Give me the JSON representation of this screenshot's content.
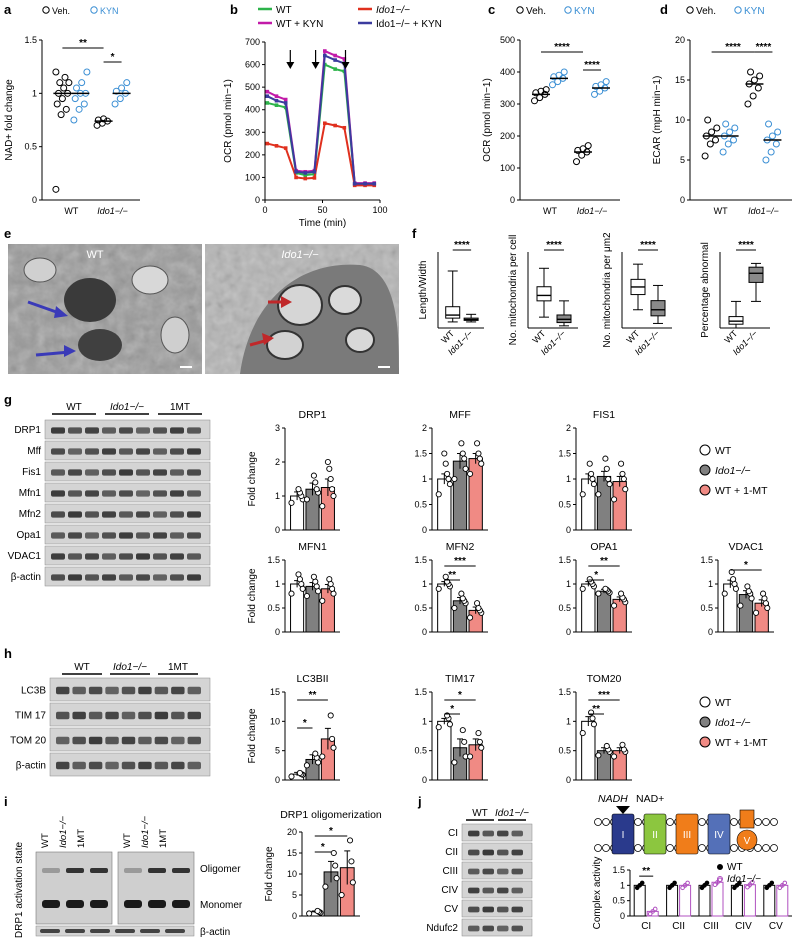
{
  "panels": {
    "a": {
      "letter": "a"
    },
    "b": {
      "letter": "b"
    },
    "c": {
      "letter": "c"
    },
    "d": {
      "letter": "d"
    },
    "e": {
      "letter": "e",
      "left_label": "WT",
      "right_label": "Ido1−/−"
    },
    "f": {
      "letter": "f"
    },
    "g": {
      "letter": "g"
    },
    "h": {
      "letter": "h"
    },
    "i": {
      "letter": "i"
    },
    "j": {
      "letter": "j"
    }
  },
  "legend_veh_kyn": {
    "veh": "Veh.",
    "kyn": "KYN",
    "veh_color": "#000000",
    "kyn_color": "#3b8fd4"
  },
  "legend_b": [
    {
      "name": "WT",
      "color": "#2db34a"
    },
    {
      "name": "WT + KYN",
      "color": "#c21aa8"
    },
    {
      "name": "Ido1−/−",
      "color": "#e0301e"
    },
    {
      "name": "Ido1−/− + KYN",
      "color": "#3b3b9e"
    }
  ],
  "legend_groups": [
    {
      "name": "WT",
      "color": "#ffffff"
    },
    {
      "name": "Ido1−/−",
      "color": "#808080"
    },
    {
      "name": "WT + 1-MT",
      "color": "#f08a84"
    }
  ],
  "legend_j": [
    {
      "name": "WT",
      "color": "#000000"
    },
    {
      "name": "Ido1−/−",
      "color": "#b050c0"
    }
  ],
  "blots": {
    "g": {
      "groups": [
        "WT",
        "Ido1−/−",
        "1MT"
      ],
      "rows": [
        "DRP1",
        "Mff",
        "Fis1",
        "Mfn1",
        "Mfn2",
        "Opa1",
        "VDAC1",
        "β-actin"
      ]
    },
    "h": {
      "groups": [
        "WT",
        "Ido1−/−",
        "1MT"
      ],
      "rows": [
        "LC3B",
        "TIM 17",
        "TOM 20",
        "β-actin"
      ]
    },
    "i": {
      "lanes": [
        "WT",
        "Ido1−/−",
        "1MT",
        "WT",
        "Ido1−/−",
        "1MT"
      ],
      "ylabel": "DRP1 activation state",
      "oligomer": "Oligomer",
      "monomer": "Monomer",
      "actin": "β-actin"
    },
    "j": {
      "groups": [
        "WT",
        "Ido1−/−"
      ],
      "rows": [
        "CI",
        "CII",
        "CIII",
        "CIV",
        "CV",
        "Ndufc2"
      ]
    }
  },
  "schematic_j": {
    "nadh": "NADH",
    "nad": "NAD+",
    "complexes": [
      {
        "label": "I",
        "color": "#2a3a8c"
      },
      {
        "label": "II",
        "color": "#8cc63f"
      },
      {
        "label": "III",
        "color": "#f07d1a"
      },
      {
        "label": "IV",
        "color": "#5470b8"
      },
      {
        "label": "V",
        "color": "#f07d1a"
      }
    ]
  },
  "chart_data": [
    {
      "id": "a",
      "type": "scatter",
      "ylabel": "NAD+ fold change",
      "ylim": [
        0,
        1.5
      ],
      "yticks": [
        0,
        0.5,
        1.0,
        1.5
      ],
      "categories": [
        "WT",
        "Ido1−/−"
      ],
      "series": [
        {
          "name": "Veh.",
          "values": [
            [
              0.1,
              0.8,
              0.85,
              0.9,
              0.95,
              1.0,
              1.0,
              1.05,
              1.1,
              1.1,
              1.15,
              1.2
            ],
            [
              0.7,
              0.72,
              0.74,
              0.75,
              0.76
            ]
          ]
        },
        {
          "name": "KYN",
          "values": [
            [
              0.75,
              0.85,
              0.9,
              0.95,
              1.0,
              1.0,
              1.05,
              1.1,
              1.2
            ],
            [
              0.9,
              0.95,
              1.0,
              1.02,
              1.05,
              1.1
            ]
          ]
        }
      ],
      "means": [
        [
          1.0,
          1.0
        ],
        [
          0.74,
          1.0
        ]
      ],
      "sig": [
        {
          "text": "**"
        },
        {
          "text": "*"
        }
      ]
    },
    {
      "id": "b",
      "type": "line",
      "ylabel": "OCR (pmol min−1)",
      "xlabel": "Time (min)",
      "xlim": [
        0,
        100
      ],
      "ylim": [
        0,
        700
      ],
      "xticks": [
        0,
        50,
        100
      ],
      "yticks": [
        0,
        100,
        200,
        300,
        400,
        500,
        600,
        700
      ],
      "x": [
        2,
        10,
        18,
        27,
        35,
        43,
        52,
        61,
        69,
        78,
        87,
        95
      ],
      "arrows_x": [
        22,
        44,
        70
      ],
      "series": [
        {
          "name": "WT",
          "values": [
            430,
            420,
            410,
            120,
            110,
            115,
            600,
            580,
            570,
            70,
            70,
            70
          ]
        },
        {
          "name": "WT + KYN",
          "values": [
            480,
            460,
            445,
            130,
            125,
            130,
            660,
            640,
            625,
            75,
            75,
            75
          ]
        },
        {
          "name": "Ido1−/−",
          "values": [
            250,
            240,
            230,
            100,
            95,
            98,
            340,
            330,
            320,
            65,
            65,
            65
          ]
        },
        {
          "name": "Ido1−/− + KYN",
          "values": [
            460,
            440,
            430,
            125,
            120,
            125,
            640,
            620,
            605,
            72,
            72,
            72
          ]
        }
      ]
    },
    {
      "id": "c",
      "type": "scatter",
      "ylabel": "OCR (pmol min−1)",
      "ylim": [
        0,
        500
      ],
      "yticks": [
        0,
        100,
        200,
        300,
        400,
        500
      ],
      "categories": [
        "WT",
        "Ido1−/−"
      ],
      "series": [
        {
          "name": "Veh.",
          "values": [
            [
              310,
              320,
              330,
              335,
              340,
              345
            ],
            [
              120,
              140,
              150,
              155,
              160,
              170
            ]
          ]
        },
        {
          "name": "KYN",
          "values": [
            [
              360,
              370,
              380,
              385,
              390,
              400
            ],
            [
              330,
              340,
              350,
              355,
              360,
              370
            ]
          ]
        }
      ],
      "means": [
        [
          330,
          380
        ],
        [
          150,
          350
        ]
      ],
      "sig": [
        {
          "text": "****"
        },
        {
          "text": "****"
        }
      ]
    },
    {
      "id": "d",
      "type": "scatter",
      "ylabel": "ECAR (mpH min−1)",
      "ylim": [
        0,
        20
      ],
      "yticks": [
        0,
        5,
        10,
        15,
        20
      ],
      "categories": [
        "WT",
        "Ido1−/−"
      ],
      "series": [
        {
          "name": "Veh.",
          "values": [
            [
              5.5,
              7,
              7.5,
              8,
              8.5,
              9,
              10
            ],
            [
              12,
              13,
              14,
              14.5,
              15,
              15.5,
              16
            ]
          ]
        },
        {
          "name": "KYN",
          "values": [
            [
              6,
              7,
              7.5,
              8,
              8.5,
              9,
              9.5
            ],
            [
              5,
              6,
              7,
              7.5,
              8,
              8.5,
              9.5
            ]
          ]
        }
      ],
      "means": [
        [
          8,
          8
        ],
        [
          14.5,
          7.5
        ]
      ],
      "sig": [
        {
          "text": "****"
        },
        {
          "text": "****"
        }
      ]
    },
    {
      "id": "f1",
      "type": "box",
      "ylabel": "Length/Width",
      "categories": [
        "WT",
        "Ido1−/−"
      ],
      "ylim": [
        0,
        10
      ],
      "boxes": [
        {
          "min": 0.8,
          "q1": 1.3,
          "med": 1.7,
          "q3": 2.8,
          "max": 7.5
        },
        {
          "min": 0.8,
          "q1": 1.0,
          "med": 1.1,
          "q3": 1.3,
          "max": 1.8
        }
      ],
      "sig": "****"
    },
    {
      "id": "f2",
      "type": "box",
      "ylabel": "No. mitochondria per cell",
      "categories": [
        "WT",
        "Ido1−/−"
      ],
      "ylim": [
        0,
        70
      ],
      "boxes": [
        {
          "min": 10,
          "q1": 25,
          "med": 30,
          "q3": 38,
          "max": 55
        },
        {
          "min": 2,
          "q1": 5,
          "med": 8,
          "q3": 12,
          "max": 25
        }
      ],
      "sig": "****"
    },
    {
      "id": "f3",
      "type": "box",
      "ylabel": "No. mitochondria per μm2",
      "categories": [
        "WT",
        "Ido1−/−"
      ],
      "ylim": [
        0,
        0.5
      ],
      "boxes": [
        {
          "min": 0.12,
          "q1": 0.22,
          "med": 0.27,
          "q3": 0.32,
          "max": 0.42
        },
        {
          "min": 0.03,
          "q1": 0.08,
          "med": 0.12,
          "q3": 0.18,
          "max": 0.28
        }
      ],
      "sig": "****"
    },
    {
      "id": "f4",
      "type": "box",
      "ylabel": "Percentage abnormal",
      "categories": [
        "WT",
        "Ido1−/−"
      ],
      "ylim": [
        0,
        100
      ],
      "boxes": [
        {
          "min": 0,
          "q1": 5,
          "med": 9,
          "q3": 15,
          "max": 35
        },
        {
          "min": 35,
          "q1": 60,
          "med": 72,
          "q3": 80,
          "max": 85
        }
      ],
      "sig": "****"
    },
    {
      "id": "g_drp1",
      "type": "bar",
      "title": "DRP1",
      "ylabel": "Fold change",
      "ylim": [
        0,
        3
      ],
      "yticks": [
        0,
        1,
        2,
        3
      ],
      "values": [
        1.0,
        1.2,
        1.25
      ],
      "err": [
        0.12,
        0.18,
        0.25
      ],
      "points": [
        [
          0.8,
          0.9,
          1.0,
          1.1,
          1.2
        ],
        [
          0.9,
          1.1,
          1.2,
          1.4,
          1.6
        ],
        [
          0.7,
          1.0,
          1.2,
          1.5,
          1.8,
          2.0
        ]
      ]
    },
    {
      "id": "g_mff",
      "type": "bar",
      "title": "MFF",
      "ylim": [
        0,
        2
      ],
      "yticks": [
        0,
        0.5,
        1.0,
        1.5,
        2.0
      ],
      "values": [
        1.0,
        1.35,
        1.4
      ],
      "err": [
        0.1,
        0.15,
        0.1
      ],
      "points": [
        [
          0.7,
          0.9,
          1.0,
          1.1,
          1.3,
          1.5
        ],
        [
          1.0,
          1.2,
          1.4,
          1.5,
          1.7
        ],
        [
          1.1,
          1.3,
          1.4,
          1.5,
          1.7
        ]
      ]
    },
    {
      "id": "g_fis1",
      "type": "bar",
      "title": "FIS1",
      "ylim": [
        0,
        2
      ],
      "yticks": [
        0,
        0.5,
        1.0,
        1.5,
        2.0
      ],
      "values": [
        1.0,
        1.05,
        0.95
      ],
      "err": [
        0.1,
        0.1,
        0.1
      ],
      "points": [
        [
          0.7,
          0.9,
          1.0,
          1.1,
          1.3
        ],
        [
          0.7,
          0.9,
          1.0,
          1.2,
          1.4
        ],
        [
          0.6,
          0.8,
          1.0,
          1.1,
          1.3
        ]
      ]
    },
    {
      "id": "g_mfn1",
      "type": "bar",
      "title": "MFN1",
      "ylabel": "Fold change",
      "ylim": [
        0,
        1.5
      ],
      "yticks": [
        0,
        0.5,
        1.0,
        1.5
      ],
      "values": [
        1.0,
        0.95,
        0.9
      ],
      "err": [
        0.07,
        0.08,
        0.09
      ],
      "points": [
        [
          0.8,
          0.9,
          1.0,
          1.1,
          1.2
        ],
        [
          0.75,
          0.85,
          0.95,
          1.05,
          1.15
        ],
        [
          0.65,
          0.8,
          0.9,
          1.0,
          1.1
        ]
      ]
    },
    {
      "id": "g_mfn2",
      "type": "bar",
      "title": "MFN2",
      "ylim": [
        0,
        1.5
      ],
      "yticks": [
        0,
        0.5,
        1.0,
        1.5
      ],
      "values": [
        1.0,
        0.65,
        0.45
      ],
      "err": [
        0.05,
        0.07,
        0.07
      ],
      "points": [
        [
          0.9,
          0.95,
          1.0,
          1.05,
          1.15
        ],
        [
          0.5,
          0.6,
          0.65,
          0.7,
          0.8
        ],
        [
          0.3,
          0.4,
          0.45,
          0.5,
          0.6
        ]
      ],
      "sig": [
        {
          "text": "***"
        },
        {
          "text": "**"
        }
      ]
    },
    {
      "id": "g_opa1",
      "type": "bar",
      "title": "OPA1",
      "ylim": [
        0,
        1.5
      ],
      "yticks": [
        0,
        0.5,
        1.0,
        1.5
      ],
      "values": [
        1.0,
        0.85,
        0.68
      ],
      "err": [
        0.05,
        0.04,
        0.05
      ],
      "points": [
        [
          0.9,
          0.95,
          1.0,
          1.05,
          1.1
        ],
        [
          0.8,
          0.82,
          0.85,
          0.88,
          0.9
        ],
        [
          0.55,
          0.62,
          0.68,
          0.72,
          0.8
        ]
      ],
      "sig": [
        {
          "text": "**"
        },
        {
          "text": "*"
        }
      ]
    },
    {
      "id": "g_vdac1",
      "type": "bar",
      "title": "VDAC1",
      "ylim": [
        0,
        1.5
      ],
      "yticks": [
        0,
        0.5,
        1.0,
        1.5
      ],
      "values": [
        1.0,
        0.78,
        0.6
      ],
      "err": [
        0.08,
        0.08,
        0.07
      ],
      "points": [
        [
          0.8,
          0.9,
          1.0,
          1.1,
          1.25
        ],
        [
          0.55,
          0.7,
          0.8,
          0.85,
          0.95
        ],
        [
          0.4,
          0.5,
          0.6,
          0.7,
          0.8
        ]
      ],
      "sig": [
        {
          "text": "*"
        }
      ]
    },
    {
      "id": "h_lc3",
      "type": "bar",
      "title": "LC3BII",
      "ylabel": "Fold change",
      "ylim": [
        0,
        15
      ],
      "yticks": [
        0,
        5,
        10,
        15
      ],
      "values": [
        1.0,
        3.5,
        7.0
      ],
      "err": [
        0.3,
        0.8,
        1.8
      ],
      "points": [
        [
          0.6,
          0.9,
          1.0,
          1.2
        ],
        [
          2.5,
          3.0,
          3.8,
          4.5
        ],
        [
          4.0,
          5.5,
          7.0,
          11.0
        ]
      ],
      "sig": [
        {
          "text": "**"
        },
        {
          "text": "*"
        }
      ]
    },
    {
      "id": "h_tim17",
      "type": "bar",
      "title": "TIM17",
      "ylim": [
        0,
        1.5
      ],
      "yticks": [
        0,
        0.5,
        1.0,
        1.5
      ],
      "values": [
        1.0,
        0.55,
        0.6
      ],
      "err": [
        0.05,
        0.15,
        0.1
      ],
      "points": [
        [
          0.9,
          0.95,
          1.05,
          1.1
        ],
        [
          0.3,
          0.4,
          0.65,
          0.85
        ],
        [
          0.4,
          0.55,
          0.65,
          0.8
        ]
      ],
      "sig": [
        {
          "text": "*"
        },
        {
          "text": "*"
        }
      ]
    },
    {
      "id": "h_tom20",
      "type": "bar",
      "title": "TOM20",
      "ylim": [
        0,
        1.5
      ],
      "yticks": [
        0,
        0.5,
        1.0,
        1.5
      ],
      "values": [
        1.0,
        0.5,
        0.5
      ],
      "err": [
        0.08,
        0.05,
        0.05
      ],
      "points": [
        [
          0.8,
          0.95,
          1.05,
          1.15
        ],
        [
          0.42,
          0.48,
          0.52,
          0.58
        ],
        [
          0.4,
          0.48,
          0.52,
          0.6
        ]
      ],
      "sig": [
        {
          "text": "***"
        },
        {
          "text": "**"
        }
      ]
    },
    {
      "id": "i_drp1",
      "type": "bar",
      "title": "DRP1 oligomerization",
      "ylabel": "Fold change",
      "ylim": [
        0,
        20
      ],
      "yticks": [
        0,
        5,
        10,
        15,
        20
      ],
      "values": [
        1.0,
        10.5,
        11.5
      ],
      "err": [
        0.2,
        2.5,
        4.0
      ],
      "points": [
        [
          0.6,
          0.8,
          1.0,
          1.2
        ],
        [
          7,
          9,
          12,
          15
        ],
        [
          5,
          8,
          13,
          18
        ]
      ],
      "sig": [
        {
          "text": "*"
        },
        {
          "text": "*"
        }
      ]
    },
    {
      "id": "j_activity",
      "type": "bar",
      "ylabel": "Complex activity",
      "categories": [
        "CI",
        "CII",
        "CIII",
        "CIV",
        "CV"
      ],
      "ylim": [
        0,
        1.5
      ],
      "yticks": [
        0,
        0.5,
        1.0,
        1.5
      ],
      "series": [
        {
          "name": "WT",
          "values": [
            1.0,
            1.0,
            1.0,
            1.0,
            1.0
          ],
          "err": [
            0.03,
            0.08,
            0.08,
            0.06,
            0.06
          ]
        },
        {
          "name": "Ido1−/−",
          "values": [
            0.15,
            1.0,
            1.1,
            1.02,
            1.0
          ],
          "err": [
            0.03,
            0.08,
            0.1,
            0.1,
            0.08
          ]
        }
      ],
      "sig": [
        {
          "text": "**"
        }
      ]
    }
  ]
}
